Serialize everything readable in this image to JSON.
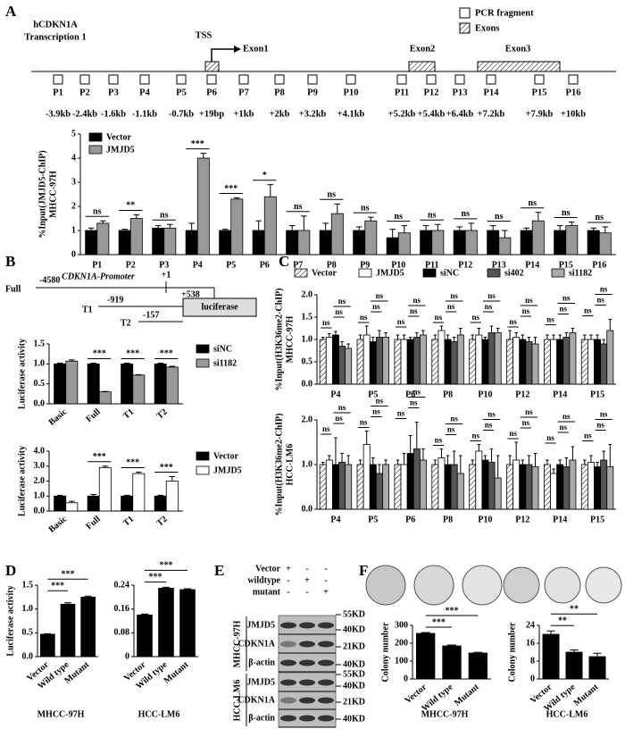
{
  "panel_labels": [
    "A",
    "B",
    "C",
    "D",
    "E",
    "F"
  ],
  "gene_map": {
    "gene": "hCDKN1A",
    "transcript": "Transcription 1",
    "tss": "TSS",
    "exons": [
      "Exon1",
      "Exon2",
      "Exon3"
    ],
    "legend": [
      "PCR fragment",
      "Exons"
    ],
    "primers": [
      "P1",
      "P2",
      "P3",
      "P4",
      "P5",
      "P6",
      "P7",
      "P8",
      "P9",
      "P10",
      "P11",
      "P12",
      "P13",
      "P14",
      "P15",
      "P16"
    ],
    "positions": [
      "-3.9kb",
      "-2.4kb",
      "-1.6kb",
      "-1.1kb",
      "-0.7kb",
      "+19bp",
      "+1kb",
      "+2kb",
      "+3.2kb",
      "+4.1kb",
      "+5.2kb",
      "+5.4kb",
      "+6.4kb",
      "+7.2kb",
      "+7.9kb",
      "+10kb"
    ]
  },
  "promoter_map": {
    "title": "CDKN1A-Promoter",
    "tss": "+1",
    "end": "+538",
    "reporter": "luciferase",
    "constructs": [
      {
        "name": "Full",
        "start": "-4580"
      },
      {
        "name": "T1",
        "start": "-919"
      },
      {
        "name": "T2",
        "start": "-157"
      }
    ]
  },
  "western_blot": {
    "conditions": [
      "Vector",
      "wildtype",
      "mutant"
    ],
    "matrix": [
      [
        "+",
        "-",
        "-"
      ],
      [
        "-",
        "+",
        "-"
      ],
      [
        "-",
        "-",
        "+"
      ]
    ],
    "blocks": [
      {
        "cell_line": "MHCC-97H",
        "proteins": [
          "JMJD5",
          "CDKN1A",
          "β-actin"
        ],
        "markers": [
          "55KD",
          "40KD",
          "21KD",
          "40KD"
        ]
      },
      {
        "cell_line": "HCC-LM6",
        "proteins": [
          "JMJD5",
          "CDKN1A",
          "β-actin"
        ],
        "markers": [
          "55KD",
          "40KD",
          "21KD",
          "40KD"
        ]
      }
    ]
  },
  "chart_data": [
    {
      "type": "bar",
      "ylabel": [
        "%Input(JMJD5-ChIP)",
        "MHCC-97H"
      ],
      "legend": "top-left",
      "categories": [
        "P1",
        "P2",
        "P3",
        "P4",
        "P5",
        "P6",
        "P7",
        "P8",
        "P9",
        "P10",
        "P11",
        "P12",
        "P13",
        "P14",
        "P15",
        "P16"
      ],
      "series": [
        {
          "name": "Vector",
          "color": "#000000",
          "values": [
            1.0,
            1.0,
            1.1,
            1.0,
            1.0,
            1.0,
            1.0,
            1.0,
            1.0,
            0.7,
            1.0,
            1.0,
            1.0,
            1.0,
            1.0,
            1.0
          ],
          "errors": [
            0.1,
            0.05,
            0.1,
            0.3,
            0.05,
            0.4,
            0.2,
            0.3,
            0.15,
            0.35,
            0.2,
            0.15,
            0.2,
            0.1,
            0.2,
            0.1
          ]
        },
        {
          "name": "JMJD5",
          "color": "#999999",
          "values": [
            1.3,
            1.5,
            1.1,
            4.0,
            2.3,
            2.4,
            1.0,
            1.7,
            1.4,
            0.9,
            1.0,
            1.0,
            0.7,
            1.4,
            1.2,
            0.9
          ],
          "errors": [
            0.1,
            0.15,
            0.15,
            0.2,
            0.05,
            0.5,
            0.6,
            0.4,
            0.15,
            0.3,
            0.25,
            0.3,
            0.3,
            0.35,
            0.15,
            0.25
          ]
        }
      ],
      "annotations": [
        "ns",
        "**",
        "ns",
        "***",
        "***",
        "*",
        "ns",
        "ns",
        "ns",
        "ns",
        "ns",
        "ns",
        "ns",
        "ns",
        "ns",
        "ns"
      ],
      "ylim": [
        0,
        5
      ],
      "yticks": [
        0,
        1,
        2,
        3,
        4,
        5
      ]
    },
    {
      "type": "bar",
      "ylabel": [
        "Luciferase activity"
      ],
      "legend": "right",
      "categories": [
        "Basic",
        "Full",
        "T1",
        "T2"
      ],
      "series": [
        {
          "name": "siNC",
          "color": "#000000",
          "values": [
            1.0,
            1.0,
            1.0,
            1.0
          ],
          "errors": [
            0.02,
            0.02,
            0.02,
            0.02
          ]
        },
        {
          "name": "si1182",
          "color": "#999999",
          "values": [
            1.07,
            0.3,
            0.72,
            0.92
          ],
          "errors": [
            0.03,
            0.01,
            0.01,
            0.02
          ]
        }
      ],
      "annotations": [
        null,
        "***",
        "***",
        "***"
      ],
      "ylim": [
        0,
        1.5
      ],
      "yticks": [
        {
          "value": 0,
          "label": "0.0"
        },
        {
          "value": 0.5,
          "label": "0.5"
        },
        {
          "value": 1,
          "label": "1.0"
        },
        {
          "value": 1.5,
          "label": "1.5"
        }
      ]
    },
    {
      "type": "bar",
      "ylabel": [
        "Luciferase activity"
      ],
      "legend": "right",
      "categories": [
        "Basic",
        "Full",
        "T1",
        "T2"
      ],
      "series": [
        {
          "name": "Vector",
          "color": "#000000",
          "values": [
            1.0,
            1.0,
            1.0,
            1.0
          ],
          "errors": [
            0.05,
            0.1,
            0.05,
            0.05
          ]
        },
        {
          "name": "JMJD5",
          "color": "#ffffff",
          "values": [
            0.55,
            2.9,
            2.5,
            2.0
          ],
          "errors": [
            0.1,
            0.1,
            0.1,
            0.3
          ]
        }
      ],
      "annotations": [
        null,
        "***",
        "***",
        "***"
      ],
      "ylim": [
        0,
        4
      ],
      "yticks": [
        {
          "value": 0,
          "label": "0.0"
        },
        {
          "value": 1,
          "label": "1.0"
        },
        {
          "value": 2,
          "label": "2.0"
        },
        {
          "value": 3,
          "label": "3.0"
        },
        {
          "value": 4,
          "label": "4.0"
        }
      ]
    },
    {
      "type": "bar",
      "ylabel": [
        "%Input(H3K36me2-ChIP)",
        "MHCC-97H"
      ],
      "legend": "top",
      "categories": [
        "P4",
        "P5",
        "P6",
        "P8",
        "P10",
        "P12",
        "P14",
        "P15"
      ],
      "series": [
        {
          "name": "Vector",
          "hatch": true,
          "values": [
            1.0,
            1.0,
            1.0,
            1.0,
            1.0,
            1.0,
            1.0,
            1.0
          ],
          "errors": [
            0.05,
            0.1,
            0.1,
            0.1,
            0.1,
            0.2,
            0.1,
            0.1
          ]
        },
        {
          "name": "JMJD5",
          "color": "#ffffff",
          "values": [
            1.05,
            1.1,
            1.0,
            1.2,
            1.1,
            1.05,
            1.0,
            1.0
          ],
          "errors": [
            0.08,
            0.2,
            0.1,
            0.1,
            0.15,
            0.1,
            0.1,
            0.1
          ]
        },
        {
          "name": "siNC",
          "color": "#000000",
          "values": [
            1.1,
            0.95,
            1.0,
            1.0,
            1.0,
            1.0,
            1.0,
            1.0
          ],
          "errors": [
            0.08,
            0.1,
            0.05,
            0.1,
            0.05,
            0.1,
            0.1,
            0.1
          ]
        },
        {
          "name": "si402",
          "color": "#555555",
          "values": [
            0.85,
            1.05,
            1.05,
            0.95,
            1.15,
            0.95,
            1.05,
            0.9
          ],
          "errors": [
            0.1,
            0.15,
            0.1,
            0.1,
            0.15,
            0.1,
            0.1,
            0.1
          ]
        },
        {
          "name": "si1182",
          "color": "#aaaaaa",
          "values": [
            0.8,
            1.05,
            1.1,
            1.1,
            1.15,
            0.9,
            1.15,
            1.2
          ],
          "errors": [
            0.1,
            0.1,
            0.1,
            0.15,
            0.1,
            0.15,
            0.1,
            0.25
          ]
        }
      ],
      "annotations": [
        [
          "ns",
          "ns",
          "ns"
        ],
        [
          "ns",
          "ns",
          "ns"
        ],
        [
          "ns",
          "ns",
          "ns"
        ],
        [
          "ns",
          "ns",
          "ns"
        ],
        [
          "ns",
          "ns",
          "ns"
        ],
        [
          "ns",
          "ns",
          "ns"
        ],
        [
          "ns",
          "ns",
          "ns"
        ],
        [
          "ns",
          "ns",
          "ns"
        ]
      ],
      "ylim": [
        0,
        2
      ],
      "yticks": [
        {
          "value": 0,
          "label": "0.0"
        },
        {
          "value": 0.5,
          "label": "0.5"
        },
        {
          "value": 1,
          "label": "1.0"
        },
        {
          "value": 1.5,
          "label": "1.5"
        },
        {
          "value": 2,
          "label": "2.0"
        }
      ]
    },
    {
      "type": "bar",
      "ylabel": [
        "%Input(H3K36me2-ChIP)",
        "HCC-LM6"
      ],
      "categories": [
        "P4",
        "P5",
        "P6",
        "P8",
        "P10",
        "P12",
        "P14",
        "P15"
      ],
      "series": [
        {
          "name": "Vector",
          "hatch": true,
          "values": [
            1.0,
            1.0,
            1.0,
            1.0,
            1.0,
            1.0,
            1.0,
            1.0
          ],
          "errors": [
            0.05,
            0.1,
            0.1,
            0.1,
            0.1,
            0.2,
            0.1,
            0.1
          ]
        },
        {
          "name": "JMJD5",
          "color": "#ffffff",
          "values": [
            1.1,
            1.45,
            1.0,
            1.15,
            1.3,
            1.1,
            0.8,
            1.05
          ],
          "errors": [
            0.1,
            0.3,
            0.25,
            0.2,
            0.15,
            0.4,
            0.1,
            0.15
          ]
        },
        {
          "name": "siNC",
          "color": "#000000",
          "values": [
            1.0,
            1.0,
            1.25,
            1.0,
            1.1,
            1.0,
            1.0,
            0.95
          ],
          "errors": [
            0.6,
            0.15,
            0.4,
            0.2,
            0.1,
            0.1,
            0.1,
            0.1
          ]
        },
        {
          "name": "si402",
          "color": "#555555",
          "values": [
            1.05,
            0.8,
            1.35,
            1.0,
            1.05,
            1.0,
            0.95,
            1.1
          ],
          "errors": [
            0.2,
            0.2,
            0.6,
            0.3,
            0.3,
            0.2,
            0.2,
            0.2
          ]
        },
        {
          "name": "si1182",
          "color": "#aaaaaa",
          "values": [
            1.0,
            1.0,
            1.1,
            0.8,
            0.7,
            0.95,
            1.1,
            0.95
          ],
          "errors": [
            0.2,
            0.1,
            0.25,
            0.4,
            0.5,
            0.3,
            0.3,
            0.5
          ]
        }
      ],
      "annotations": [
        [
          "ns",
          "ns",
          "ns"
        ],
        [
          "ns",
          "ns",
          "ns"
        ],
        [
          "ns",
          "ns",
          "ns"
        ],
        [
          "ns",
          "ns",
          "ns"
        ],
        [
          "ns",
          "ns",
          "ns"
        ],
        [
          "ns",
          "ns",
          "ns"
        ],
        [
          "ns",
          "ns",
          "ns"
        ],
        [
          "ns",
          "ns",
          "ns"
        ]
      ],
      "ylim": [
        0,
        2
      ],
      "yticks": [
        {
          "value": 0,
          "label": "0.0"
        },
        {
          "value": 1,
          "label": "1.0"
        },
        {
          "value": 2,
          "label": "2.0"
        }
      ]
    },
    {
      "type": "bar",
      "ylabel": [
        "Luciferase activity"
      ],
      "xlabel": "MHCC-97H",
      "color": "#000000",
      "categories": [
        "Vector",
        "Wild type",
        "Mutant"
      ],
      "values": [
        0.47,
        1.1,
        1.25
      ],
      "errors": [
        0.01,
        0.03,
        0.02
      ],
      "significance": [
        "***",
        "***"
      ],
      "ylim": [
        0,
        1.5
      ],
      "yticks": [
        {
          "value": 0,
          "label": "0.0"
        },
        {
          "value": 0.5,
          "label": "0.5"
        },
        {
          "value": 1,
          "label": "1.0"
        },
        {
          "value": 1.5,
          "label": "1.5"
        }
      ]
    },
    {
      "type": "bar",
      "xlabel": "HCC-LM6",
      "color": "#000000",
      "categories": [
        "Vector",
        "Wild type",
        "Mutant"
      ],
      "values": [
        0.14,
        0.23,
        0.225
      ],
      "errors": [
        0.003,
        0.003,
        0.003
      ],
      "significance": [
        "***",
        "***"
      ],
      "ylim": [
        0,
        0.24
      ],
      "yticks": [
        0,
        0.08,
        0.16,
        0.24
      ]
    },
    {
      "type": "bar",
      "ylabel": [
        "Colony number"
      ],
      "xlabel": "MHCC-97H",
      "color": "#000000",
      "categories": [
        "Vector",
        "Wild type",
        "Mutant"
      ],
      "values": [
        255,
        185,
        145
      ],
      "errors": [
        5,
        5,
        4
      ],
      "significance": [
        "***",
        "***"
      ],
      "ylim": [
        0,
        300
      ],
      "yticks": [
        0,
        100,
        200,
        300
      ]
    },
    {
      "type": "bar",
      "ylabel": [
        "Colony number"
      ],
      "xlabel": "HCC-LM6",
      "color": "#000000",
      "categories": [
        "Vector",
        "Wild type",
        "Mutant"
      ],
      "values": [
        20,
        12,
        10
      ],
      "errors": [
        1.5,
        1,
        1.5
      ],
      "significance": [
        "**",
        "**"
      ],
      "ylim": [
        0,
        24
      ],
      "yticks": [
        0,
        8,
        16,
        24
      ]
    }
  ]
}
